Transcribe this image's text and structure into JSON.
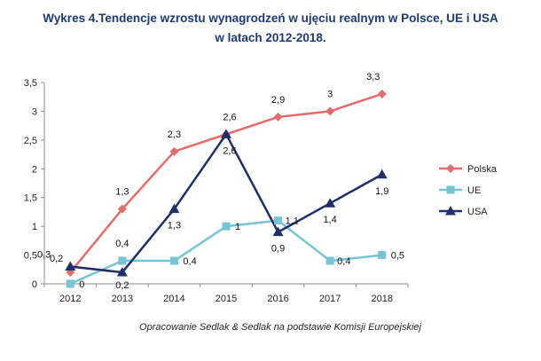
{
  "chart_data": {
    "type": "line",
    "title_line1": "Wykres 4.Tendencje wzrostu wynagrodzeń w ujęciu realnym w Polsce, UE i USA",
    "title_line2": "w latach 2012-2018.",
    "categories": [
      "2012",
      "2013",
      "2014",
      "2015",
      "2016",
      "2017",
      "2018"
    ],
    "y_ticks": [
      "0",
      "0,5",
      "1",
      "1,5",
      "2",
      "2,5",
      "3",
      "3,5"
    ],
    "ylim": [
      0,
      3.5
    ],
    "grid": false,
    "legend_position": "right",
    "series": [
      {
        "name": "Polska",
        "color": "#e46c6a",
        "marker": "diamond",
        "values": [
          0.2,
          1.3,
          2.3,
          2.6,
          2.9,
          3.0,
          3.3
        ],
        "labels": [
          "0,2",
          "1,3",
          "2,3",
          "2,6",
          "2,9",
          "3",
          "3,3"
        ]
      },
      {
        "name": "UE",
        "color": "#75c5d6",
        "marker": "square",
        "values": [
          0,
          0.4,
          0.4,
          1.0,
          1.1,
          0.4,
          0.5
        ],
        "labels": [
          "0",
          "0,4",
          "0,4",
          "1",
          "1,1",
          "0,4",
          "0,5"
        ]
      },
      {
        "name": "USA",
        "color": "#1f2f6b",
        "marker": "triangle",
        "values": [
          0.3,
          0.2,
          1.3,
          2.6,
          0.9,
          1.4,
          1.9
        ],
        "labels": [
          "0,3",
          "0,2",
          "1,3",
          "2,6",
          "0,9",
          "1,4",
          "1,9"
        ]
      }
    ],
    "source": "Opracowanie Sedlak & Sedlak na podstawie Komisji Europejskiej"
  }
}
